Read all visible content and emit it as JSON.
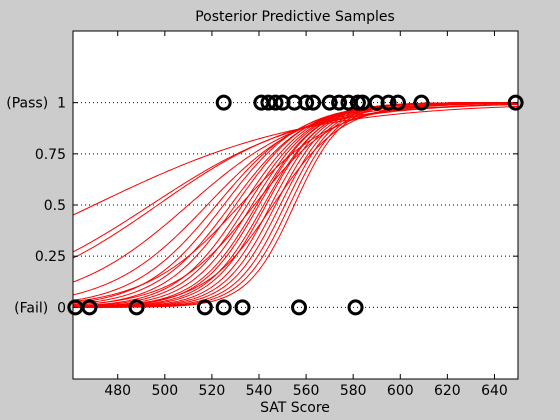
{
  "colors": {
    "figure_background": "#cccccc",
    "axes_background": "#ffffff",
    "curve_color": "#ff0000",
    "marker_color": "#000000",
    "grid_color": "#000000"
  },
  "chart_data": {
    "type": "line",
    "title": "Posterior Predictive Samples",
    "xlabel": "SAT Score",
    "ylabel": "",
    "xlim": [
      461,
      650
    ],
    "ylim": [
      -0.35,
      1.35
    ],
    "x_ticks": [
      480,
      500,
      520,
      540,
      560,
      580,
      600,
      620,
      640
    ],
    "y_ticks": [
      {
        "value": 0,
        "label": "(Fail)  0"
      },
      {
        "value": 0.25,
        "label": "0.25"
      },
      {
        "value": 0.5,
        "label": "0.5"
      },
      {
        "value": 0.75,
        "label": "0.75"
      },
      {
        "value": 1,
        "label": "(Pass)  1"
      }
    ],
    "grid": "horizontal dotted lines at y ticks",
    "legend": "none",
    "series": [
      {
        "kind": "observed_data",
        "marker": "circle",
        "points": [
          {
            "x": 525,
            "y": 1
          },
          {
            "x": 541,
            "y": 1
          },
          {
            "x": 544,
            "y": 1
          },
          {
            "x": 547,
            "y": 1
          },
          {
            "x": 550,
            "y": 1
          },
          {
            "x": 555,
            "y": 1
          },
          {
            "x": 560,
            "y": 1
          },
          {
            "x": 563,
            "y": 1
          },
          {
            "x": 570,
            "y": 1
          },
          {
            "x": 574,
            "y": 1
          },
          {
            "x": 578,
            "y": 1
          },
          {
            "x": 582,
            "y": 1
          },
          {
            "x": 584,
            "y": 1
          },
          {
            "x": 590,
            "y": 1
          },
          {
            "x": 595,
            "y": 1
          },
          {
            "x": 599,
            "y": 1
          },
          {
            "x": 609,
            "y": 1
          },
          {
            "x": 649,
            "y": 1
          },
          {
            "x": 462,
            "y": 0
          },
          {
            "x": 468,
            "y": 0
          },
          {
            "x": 488,
            "y": 0
          },
          {
            "x": 517,
            "y": 0
          },
          {
            "x": 525,
            "y": 0
          },
          {
            "x": 533,
            "y": 0
          },
          {
            "x": 557,
            "y": 0
          },
          {
            "x": 581,
            "y": 0
          }
        ]
      },
      {
        "kind": "posterior_sample_curves",
        "model": "logistic",
        "curves": [
          {
            "mid": 470,
            "slope": 0.022
          },
          {
            "mid": 494,
            "slope": 0.03
          },
          {
            "mid": 497,
            "slope": 0.032
          },
          {
            "mid": 510,
            "slope": 0.04
          },
          {
            "mid": 518,
            "slope": 0.048
          },
          {
            "mid": 522,
            "slope": 0.055
          },
          {
            "mid": 525,
            "slope": 0.06
          },
          {
            "mid": 528,
            "slope": 0.062
          },
          {
            "mid": 530,
            "slope": 0.066
          },
          {
            "mid": 533,
            "slope": 0.07
          },
          {
            "mid": 535,
            "slope": 0.072
          },
          {
            "mid": 537,
            "slope": 0.075
          },
          {
            "mid": 539,
            "slope": 0.078
          },
          {
            "mid": 540,
            "slope": 0.08
          },
          {
            "mid": 542,
            "slope": 0.082
          },
          {
            "mid": 543,
            "slope": 0.085
          },
          {
            "mid": 545,
            "slope": 0.088
          },
          {
            "mid": 547,
            "slope": 0.09
          },
          {
            "mid": 549,
            "slope": 0.092
          },
          {
            "mid": 551,
            "slope": 0.095
          },
          {
            "mid": 553,
            "slope": 0.097
          },
          {
            "mid": 555,
            "slope": 0.1
          },
          {
            "mid": 538,
            "slope": 0.058
          },
          {
            "mid": 546,
            "slope": 0.068
          },
          {
            "mid": 532,
            "slope": 0.05
          }
        ]
      }
    ]
  }
}
